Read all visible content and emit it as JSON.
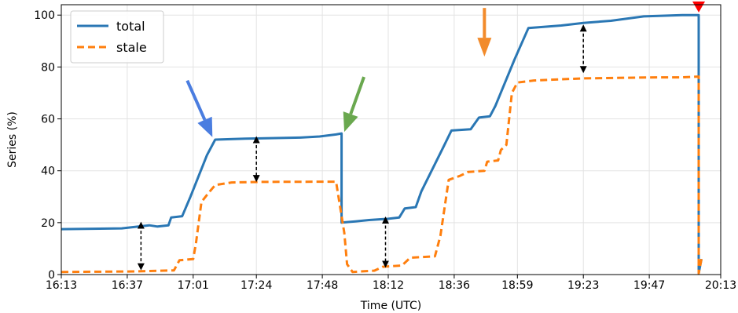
{
  "chart_data": {
    "type": "line",
    "title": "",
    "xlabel": "Time (UTC)",
    "ylabel": "Series (%)",
    "x_ticks": [
      "16:13",
      "16:37",
      "17:01",
      "17:24",
      "17:48",
      "18:12",
      "18:36",
      "18:59",
      "19:23",
      "19:47",
      "20:13"
    ],
    "y_ticks": [
      0,
      20,
      40,
      60,
      80,
      100
    ],
    "xlim": [
      "16:13",
      "20:13"
    ],
    "ylim": [
      0,
      104
    ],
    "grid": true,
    "legend_position": "top-left",
    "series": [
      {
        "name": "total",
        "color": "#2a77b4",
        "style": "solid",
        "points": [
          [
            "16:13",
            17.5
          ],
          [
            "16:35",
            17.8
          ],
          [
            "16:45",
            19.0
          ],
          [
            "16:48",
            18.5
          ],
          [
            "16:52",
            19.0
          ],
          [
            "16:53",
            22.0
          ],
          [
            "16:57",
            22.5
          ],
          [
            "17:00",
            30.0
          ],
          [
            "17:06",
            46.0
          ],
          [
            "17:09",
            52.0
          ],
          [
            "17:20",
            52.4
          ],
          [
            "17:40",
            52.8
          ],
          [
            "17:47",
            53.2
          ],
          [
            "17:53",
            54.0
          ],
          [
            "17:55",
            54.4
          ],
          [
            "17:55",
            20.0
          ],
          [
            "18:00",
            20.5
          ],
          [
            "18:05",
            21.0
          ],
          [
            "18:12",
            21.5
          ],
          [
            "18:16",
            22.0
          ],
          [
            "18:18",
            25.5
          ],
          [
            "18:22",
            26.0
          ],
          [
            "18:24",
            32.0
          ],
          [
            "18:32",
            49.0
          ],
          [
            "18:35",
            55.5
          ],
          [
            "18:42",
            56.0
          ],
          [
            "18:45",
            60.5
          ],
          [
            "18:49",
            61.0
          ],
          [
            "18:51",
            65.0
          ],
          [
            "18:58",
            83.0
          ],
          [
            "19:03",
            95.0
          ],
          [
            "19:15",
            96.0
          ],
          [
            "19:23",
            97.0
          ],
          [
            "19:33",
            97.8
          ],
          [
            "19:45",
            99.5
          ],
          [
            "19:59",
            100.0
          ],
          [
            "20:05",
            100.0
          ],
          [
            "20:05",
            0.5
          ],
          [
            "20:06",
            6.0
          ]
        ]
      },
      {
        "name": "stale",
        "color": "#ff7f0e",
        "style": "dashed",
        "points": [
          [
            "16:13",
            1.0
          ],
          [
            "16:40",
            1.2
          ],
          [
            "16:54",
            1.6
          ],
          [
            "16:56",
            5.5
          ],
          [
            "17:01",
            6.0
          ],
          [
            "17:02",
            12.0
          ],
          [
            "17:04",
            28.0
          ],
          [
            "17:07",
            32.0
          ],
          [
            "17:09",
            34.5
          ],
          [
            "17:15",
            35.5
          ],
          [
            "17:25",
            35.7
          ],
          [
            "17:50",
            35.8
          ],
          [
            "17:53",
            35.8
          ],
          [
            "17:56",
            16.0
          ],
          [
            "17:57",
            4.0
          ],
          [
            "17:59",
            1.0
          ],
          [
            "18:07",
            1.5
          ],
          [
            "18:10",
            3.0
          ],
          [
            "18:17",
            3.5
          ],
          [
            "18:20",
            6.5
          ],
          [
            "18:29",
            7.0
          ],
          [
            "18:31",
            15.0
          ],
          [
            "18:34",
            36.5
          ],
          [
            "18:38",
            38.0
          ],
          [
            "18:41",
            39.5
          ],
          [
            "18:47",
            40.0
          ],
          [
            "18:48",
            43.5
          ],
          [
            "18:52",
            44.0
          ],
          [
            "18:53",
            48.0
          ],
          [
            "18:55",
            50.0
          ],
          [
            "18:57",
            70.0
          ],
          [
            "18:59",
            74.0
          ],
          [
            "19:05",
            74.8
          ],
          [
            "19:23",
            75.6
          ],
          [
            "19:50",
            76.0
          ],
          [
            "19:59",
            76.0
          ],
          [
            "20:05",
            76.3
          ],
          [
            "20:05",
            0.5
          ],
          [
            "20:06",
            6.0
          ]
        ]
      }
    ],
    "annotations": {
      "arrows": [
        {
          "color": "#4a7de0",
          "points_to": [
            "17:08",
            53
          ]
        },
        {
          "color": "#6aa84f",
          "points_to": [
            "17:56",
            55
          ]
        },
        {
          "color": "#f28b2b",
          "points_to": [
            "18:47",
            84
          ]
        },
        {
          "color": "#ff0000",
          "points_to": [
            "20:05",
            101
          ]
        }
      ],
      "double_arrows": [
        {
          "x": "16:42",
          "y1": 19,
          "y2": 3
        },
        {
          "x": "17:24",
          "y1": 52,
          "y2": 37
        },
        {
          "x": "18:11",
          "y1": 21,
          "y2": 4
        },
        {
          "x": "19:23",
          "y1": 95,
          "y2": 79
        }
      ]
    }
  }
}
